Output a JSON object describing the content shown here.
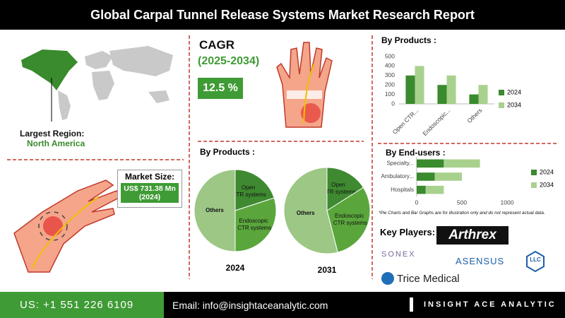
{
  "header": {
    "title": "Global Carpal Tunnel Release Systems Market Research Report"
  },
  "region": {
    "label": "Largest Region:",
    "value": "North America"
  },
  "market_size": {
    "label": "Market Size:",
    "value": "US$ 731.38 Mn (2024)"
  },
  "cagr": {
    "label": "CAGR",
    "period": "(2025-2034)",
    "value": "12.5 %"
  },
  "pie_section": {
    "title": "By Products :"
  },
  "note": "*Pie Charts and Bar Graphs are for illustration only and do not represent actual data.",
  "key_players": {
    "title": "Key Players:",
    "companies": [
      "Arthrex",
      "SONEX",
      "ASENSUS",
      "LLC",
      "Trice Medical"
    ]
  },
  "footer": {
    "phone": "US: +1 551 226 6109",
    "email": "Email: info@insightaceanalytic.com",
    "brand": "INSIGHT ACE ANALYTIC"
  },
  "chart_data": [
    {
      "type": "bar",
      "title": "By Products :",
      "categories": [
        "Open CTR...",
        "Endoscopic...",
        "Others"
      ],
      "series": [
        {
          "name": "2024",
          "color": "#3a8a2e",
          "values": [
            300,
            200,
            100
          ]
        },
        {
          "name": "2034",
          "color": "#a9d18e",
          "values": [
            400,
            300,
            200
          ]
        }
      ],
      "ylim": [
        0,
        500
      ],
      "yticks": [
        0,
        100,
        200,
        300,
        400,
        500
      ],
      "grid": false,
      "legend": "right"
    },
    {
      "type": "hbar",
      "title": "By End-users :",
      "categories": [
        "Specialty...",
        "Ambulatory...",
        "Hospitals"
      ],
      "stacked": true,
      "series": [
        {
          "name": "2024",
          "color": "#3a8a2e",
          "values": [
            300,
            200,
            100
          ]
        },
        {
          "name": "2034",
          "color": "#a9d18e",
          "values": [
            400,
            300,
            200
          ]
        }
      ],
      "xlim": [
        0,
        1000
      ],
      "xticks": [
        0,
        500,
        1000
      ],
      "grid": false,
      "legend": "right"
    },
    {
      "type": "pie",
      "title": "2024",
      "categories": [
        "Open CTR systems",
        "Endoscopic CTR systems",
        "Others"
      ],
      "values": [
        20,
        30,
        50
      ],
      "colors": [
        "#3f8a30",
        "#5aa63c",
        "#9cc785"
      ]
    },
    {
      "type": "pie",
      "title": "2031",
      "categories": [
        "Open CTR systems",
        "Endoscopic CTR systems",
        "Others"
      ],
      "values": [
        16,
        30,
        54
      ],
      "colors": [
        "#3f8a30",
        "#5aa63c",
        "#9cc785"
      ]
    }
  ]
}
